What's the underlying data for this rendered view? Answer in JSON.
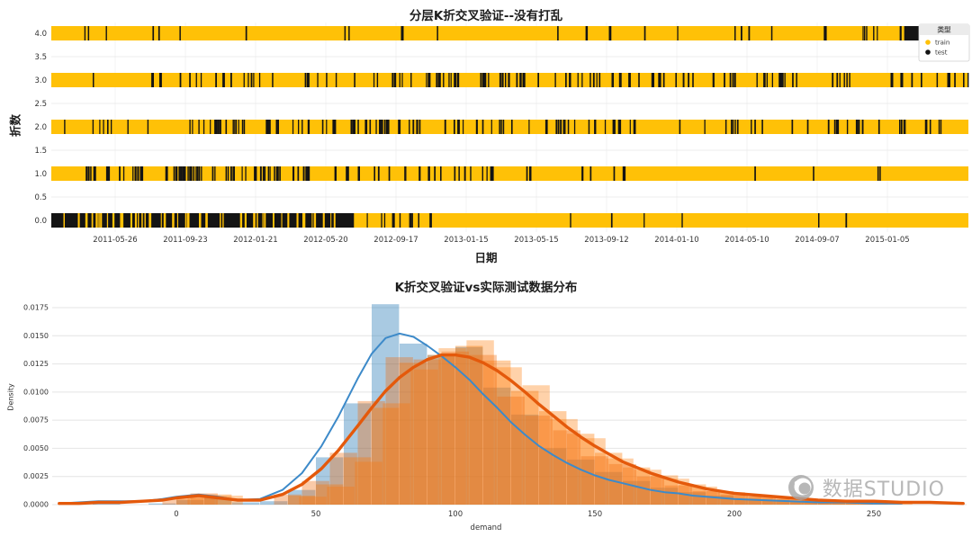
{
  "watermark": {
    "text": "数据STUDIO",
    "color": "#a6a6a6"
  },
  "chart_data": [
    {
      "type": "scatter",
      "subtype": "cross-validation-indices-timeline",
      "title": "分层K折交叉验证--没有打乱",
      "xlabel": "日期",
      "ylabel": "折数",
      "train_color": "#ffc107",
      "test_color": "#141414",
      "grid": true,
      "y_ticks": [
        "0.0",
        "0.5",
        "1.0",
        "1.5",
        "2.0",
        "2.5",
        "3.0",
        "3.5",
        "4.0"
      ],
      "x_ticks": [
        "2011-05-26",
        "2011-09-23",
        "2012-01-21",
        "2012-05-20",
        "2012-09-17",
        "2013-01-15",
        "2013-05-15",
        "2013-09-12",
        "2014-01-10",
        "2014-05-10",
        "2014-09-07",
        "2015-01-05"
      ],
      "legend": {
        "title": "类型",
        "position": "upper right",
        "entries": [
          {
            "label": "train",
            "color": "#ffc107"
          },
          {
            "label": "test",
            "color": "#141414"
          }
        ]
      },
      "folds": [
        {
          "fold": 0,
          "test_regions": [
            [
              0.0,
              0.33,
              0.78
            ],
            [
              0.33,
              0.4,
              0.18
            ],
            [
              0.4,
              0.43,
              0.05
            ],
            [
              0.43,
              1.0,
              0.015
            ]
          ]
        },
        {
          "fold": 1,
          "test_regions": [
            [
              0.0,
              0.035,
              0.02
            ],
            [
              0.035,
              0.28,
              0.38
            ],
            [
              0.28,
              0.48,
              0.2
            ],
            [
              0.48,
              0.72,
              0.035
            ],
            [
              0.72,
              1.0,
              0.02
            ]
          ]
        },
        {
          "fold": 2,
          "test_regions": [
            [
              0.0,
              0.15,
              0.08
            ],
            [
              0.15,
              0.45,
              0.3
            ],
            [
              0.45,
              0.65,
              0.22
            ],
            [
              0.65,
              1.0,
              0.12
            ]
          ]
        },
        {
          "fold": 3,
          "test_regions": [
            [
              0.0,
              0.09,
              0.02
            ],
            [
              0.09,
              0.35,
              0.13
            ],
            [
              0.35,
              0.6,
              0.28
            ],
            [
              0.6,
              0.8,
              0.22
            ],
            [
              0.8,
              1.0,
              0.14
            ]
          ]
        },
        {
          "fold": 4,
          "test_regions": [
            [
              0.0,
              0.55,
              0.03
            ],
            [
              0.55,
              0.93,
              0.07
            ],
            [
              0.93,
              1.0,
              0.93
            ]
          ]
        }
      ]
    },
    {
      "type": "bar",
      "subtype": "histogram-with-kde",
      "title": "K折交叉验证vs实际测试数据分布",
      "xlabel": "demand",
      "ylabel": "Density",
      "grid": true,
      "xlim": [
        -45,
        283
      ],
      "ylim": [
        0,
        0.0186
      ],
      "x_ticks": [
        0,
        50,
        100,
        150,
        200,
        250
      ],
      "y_ticks": [
        "0.0000",
        "0.0025",
        "0.0050",
        "0.0075",
        "0.0100",
        "0.0125",
        "0.0150",
        "0.0175"
      ],
      "hist_series": [
        {
          "name": "kfold-validation-blue",
          "color": "#1f77b4",
          "alpha": 0.38,
          "bin_width": 10,
          "bins": [
            [
              -30,
              0.0002
            ],
            [
              -10,
              0.0001
            ],
            [
              0,
              0.0004
            ],
            [
              10,
              0.0006
            ],
            [
              20,
              0.0002
            ],
            [
              30,
              0.0003
            ],
            [
              40,
              0.0013
            ],
            [
              50,
              0.0042
            ],
            [
              60,
              0.009
            ],
            [
              70,
              0.0178
            ],
            [
              80,
              0.0143
            ],
            [
              90,
              0.0133
            ],
            [
              100,
              0.014
            ],
            [
              110,
              0.0104
            ],
            [
              120,
              0.008
            ],
            [
              130,
              0.005
            ],
            [
              140,
              0.004
            ],
            [
              150,
              0.0029
            ],
            [
              160,
              0.0021
            ],
            [
              170,
              0.0015
            ],
            [
              180,
              0.0011
            ],
            [
              190,
              0.0008
            ],
            [
              200,
              0.0005
            ],
            [
              210,
              0.0004
            ],
            [
              220,
              0.0003
            ],
            [
              230,
              0.0002
            ],
            [
              240,
              0.0002
            ]
          ]
        },
        {
          "name": "test-fold-orange-1",
          "color": "#ff7f0e",
          "alpha": 0.38,
          "bin_width": 10,
          "bins": [
            [
              0,
              0.0006
            ],
            [
              10,
              0.0009
            ],
            [
              40,
              0.0008
            ],
            [
              50,
              0.0018
            ],
            [
              60,
              0.0042
            ],
            [
              70,
              0.0086
            ],
            [
              80,
              0.0126
            ],
            [
              90,
              0.0133
            ],
            [
              100,
              0.0141
            ],
            [
              110,
              0.0128
            ],
            [
              120,
              0.0101
            ],
            [
              130,
              0.0083
            ],
            [
              140,
              0.0063
            ],
            [
              150,
              0.0046
            ],
            [
              160,
              0.0033
            ],
            [
              170,
              0.0026
            ],
            [
              180,
              0.0018
            ],
            [
              190,
              0.0012
            ],
            [
              200,
              0.0008
            ],
            [
              210,
              0.0006
            ],
            [
              220,
              0.0004
            ],
            [
              230,
              0.0003
            ],
            [
              240,
              0.0002
            ],
            [
              250,
              0.0002
            ]
          ]
        },
        {
          "name": "test-fold-orange-2",
          "color": "#ff7f0e",
          "alpha": 0.35,
          "bin_width": 10,
          "bins": [
            [
              4,
              0.0007
            ],
            [
              14,
              0.0008
            ],
            [
              44,
              0.0007
            ],
            [
              54,
              0.0016
            ],
            [
              64,
              0.0038
            ],
            [
              74,
              0.009
            ],
            [
              84,
              0.012
            ],
            [
              94,
              0.0139
            ],
            [
              104,
              0.0146
            ],
            [
              114,
              0.0122
            ],
            [
              124,
              0.0106
            ],
            [
              134,
              0.0076
            ],
            [
              144,
              0.0059
            ],
            [
              154,
              0.0041
            ],
            [
              164,
              0.0031
            ],
            [
              174,
              0.0023
            ],
            [
              184,
              0.0016
            ],
            [
              194,
              0.0011
            ],
            [
              204,
              0.0007
            ],
            [
              214,
              0.0005
            ],
            [
              224,
              0.0004
            ],
            [
              234,
              0.0003
            ],
            [
              244,
              0.0002
            ],
            [
              254,
              0.0001
            ]
          ]
        },
        {
          "name": "test-fold-orange-3",
          "color": "#f26a0a",
          "alpha": 0.35,
          "bin_width": 10,
          "bins": [
            [
              -5,
              0.0005
            ],
            [
              5,
              0.001
            ],
            [
              35,
              0.0009
            ],
            [
              45,
              0.0021
            ],
            [
              55,
              0.0046
            ],
            [
              65,
              0.0092
            ],
            [
              75,
              0.0131
            ],
            [
              85,
              0.0129
            ],
            [
              95,
              0.0136
            ],
            [
              105,
              0.0133
            ],
            [
              115,
              0.0096
            ],
            [
              125,
              0.0079
            ],
            [
              135,
              0.0066
            ],
            [
              145,
              0.0043
            ],
            [
              155,
              0.0036
            ],
            [
              165,
              0.0025
            ],
            [
              175,
              0.0017
            ],
            [
              185,
              0.0012
            ],
            [
              195,
              0.0009
            ],
            [
              205,
              0.0007
            ],
            [
              215,
              0.0005
            ],
            [
              225,
              0.0004
            ],
            [
              235,
              0.0003
            ],
            [
              245,
              0.0002
            ]
          ]
        }
      ],
      "kde_series": [
        {
          "name": "blue-kde",
          "color": "#3d8ac9",
          "width": 2,
          "points": [
            [
              -42,
              0.0001
            ],
            [
              -35,
              0.0002
            ],
            [
              -28,
              0.0003
            ],
            [
              -20,
              0.0003
            ],
            [
              -12,
              0.0003
            ],
            [
              -5,
              0.0005
            ],
            [
              0,
              0.0007
            ],
            [
              8,
              0.0009
            ],
            [
              15,
              0.0007
            ],
            [
              22,
              0.0004
            ],
            [
              30,
              0.0005
            ],
            [
              38,
              0.0013
            ],
            [
              45,
              0.0028
            ],
            [
              52,
              0.0052
            ],
            [
              58,
              0.0078
            ],
            [
              65,
              0.0112
            ],
            [
              70,
              0.0134
            ],
            [
              75,
              0.0148
            ],
            [
              80,
              0.0152
            ],
            [
              85,
              0.0149
            ],
            [
              90,
              0.0141
            ],
            [
              95,
              0.0132
            ],
            [
              100,
              0.0122
            ],
            [
              105,
              0.0111
            ],
            [
              110,
              0.0098
            ],
            [
              115,
              0.0086
            ],
            [
              120,
              0.0073
            ],
            [
              125,
              0.0062
            ],
            [
              130,
              0.0052
            ],
            [
              135,
              0.0044
            ],
            [
              140,
              0.0037
            ],
            [
              145,
              0.0031
            ],
            [
              150,
              0.0026
            ],
            [
              155,
              0.0022
            ],
            [
              160,
              0.0019
            ],
            [
              165,
              0.0016
            ],
            [
              170,
              0.0013
            ],
            [
              175,
              0.0011
            ],
            [
              180,
              0.001
            ],
            [
              185,
              0.0008
            ],
            [
              190,
              0.0007
            ],
            [
              195,
              0.0006
            ],
            [
              200,
              0.0005
            ],
            [
              210,
              0.0004
            ],
            [
              220,
              0.0003
            ],
            [
              230,
              0.0002
            ],
            [
              240,
              0.0002
            ],
            [
              250,
              0.0001
            ],
            [
              260,
              0.0001
            ]
          ]
        },
        {
          "name": "orange-kde",
          "color": "#e4590b",
          "width": 3.4,
          "points": [
            [
              -42,
              0.0001
            ],
            [
              -35,
              0.0001
            ],
            [
              -28,
              0.0002
            ],
            [
              -20,
              0.0002
            ],
            [
              -12,
              0.0003
            ],
            [
              -5,
              0.0004
            ],
            [
              0,
              0.0006
            ],
            [
              8,
              0.0008
            ],
            [
              15,
              0.0006
            ],
            [
              22,
              0.0004
            ],
            [
              30,
              0.0004
            ],
            [
              38,
              0.0009
            ],
            [
              45,
              0.0018
            ],
            [
              52,
              0.0032
            ],
            [
              58,
              0.0048
            ],
            [
              65,
              0.007
            ],
            [
              70,
              0.0086
            ],
            [
              75,
              0.0101
            ],
            [
              80,
              0.0113
            ],
            [
              85,
              0.0122
            ],
            [
              90,
              0.0129
            ],
            [
              95,
              0.0133
            ],
            [
              100,
              0.0133
            ],
            [
              105,
              0.0131
            ],
            [
              110,
              0.0126
            ],
            [
              115,
              0.0119
            ],
            [
              120,
              0.011
            ],
            [
              125,
              0.01
            ],
            [
              130,
              0.0089
            ],
            [
              135,
              0.0079
            ],
            [
              140,
              0.0069
            ],
            [
              145,
              0.006
            ],
            [
              150,
              0.0052
            ],
            [
              155,
              0.0045
            ],
            [
              160,
              0.0038
            ],
            [
              165,
              0.0033
            ],
            [
              170,
              0.0028
            ],
            [
              175,
              0.0024
            ],
            [
              180,
              0.002
            ],
            [
              185,
              0.0017
            ],
            [
              190,
              0.0014
            ],
            [
              195,
              0.0012
            ],
            [
              200,
              0.001
            ],
            [
              210,
              0.0008
            ],
            [
              220,
              0.0006
            ],
            [
              230,
              0.0004
            ],
            [
              240,
              0.0003
            ],
            [
              250,
              0.0003
            ],
            [
              260,
              0.0002
            ],
            [
              270,
              0.0002
            ],
            [
              282,
              0.0001
            ]
          ]
        }
      ]
    }
  ]
}
